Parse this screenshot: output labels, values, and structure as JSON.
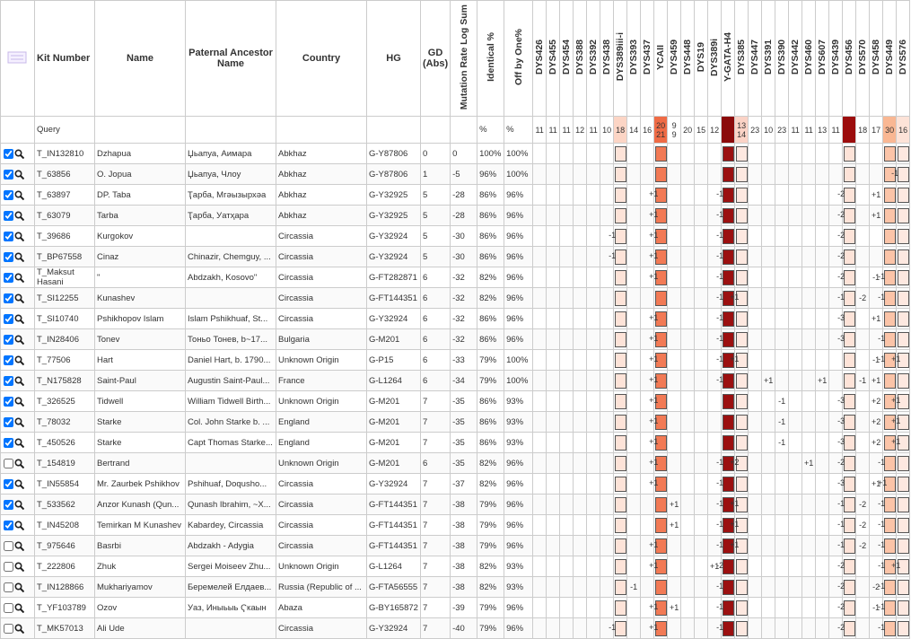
{
  "header": {
    "columns": [
      "Kit Number",
      "Name",
      "Paternal Ancestor Name",
      "Country",
      "HG",
      "GD (Abs)",
      "Mutation Rate Log Sum",
      "Identical %",
      "Off by One%"
    ],
    "markers": [
      "DYS426",
      "DYS455",
      "DYS454",
      "DYS388",
      "DYS392",
      "DYS438",
      "DYS389iii-i",
      "DYS393",
      "DYS437",
      "YCAII",
      "DYS459",
      "DYS448",
      "DYS19",
      "DYS389i",
      "Y-GATA-H4",
      "DYS385",
      "DYS447",
      "DYS391",
      "DYS390",
      "DYS442",
      "DYS460",
      "DYS607",
      "DYS439",
      "DYS456",
      "DYS570",
      "DYS458",
      "DYS449",
      "DYS576"
    ]
  },
  "query": {
    "label": "Query",
    "identical": "%",
    "off_by_one": "%",
    "values": [
      "11",
      "11",
      "11",
      "12",
      "11",
      "10",
      "18",
      "14",
      "16",
      [
        "20",
        "21"
      ],
      [
        "9",
        "9"
      ],
      "20",
      "15",
      "12",
      null,
      [
        "13",
        "14"
      ],
      "23",
      "10",
      "23",
      "11",
      "11",
      "13",
      "11",
      null,
      "18",
      "17",
      "30",
      "16"
    ]
  },
  "rows": [
    {
      "checked": true,
      "kit": "T_IN132810",
      "name": "Dzhapua",
      "ancestor": "Џьапуа, Аимара",
      "country": "Abkhaz",
      "hg": "G-Y87806",
      "gd": "0",
      "mut": "0",
      "ident": "100%",
      "off": "100%",
      "diffs": [
        null,
        null,
        null,
        null,
        null,
        null,
        null,
        null,
        null,
        null,
        null,
        null,
        null,
        null,
        null,
        null,
        null,
        null,
        null,
        null,
        null,
        null,
        null,
        null,
        null,
        null,
        null,
        null
      ]
    },
    {
      "checked": true,
      "kit": "T_63856",
      "name": "O. Jopua",
      "ancestor": "Џьапуа, Члоу",
      "country": "Abkhaz",
      "hg": "G-Y87806",
      "gd": "1",
      "mut": "-5",
      "ident": "96%",
      "off": "100%",
      "diffs": [
        null,
        null,
        null,
        null,
        null,
        null,
        null,
        null,
        null,
        null,
        null,
        null,
        null,
        null,
        null,
        null,
        null,
        null,
        null,
        null,
        null,
        null,
        null,
        null,
        null,
        null,
        null,
        "-1"
      ]
    },
    {
      "checked": true,
      "kit": "T_63897",
      "name": "DP. Taba",
      "ancestor": "Ҭарба, Мгәызырхәа",
      "country": "Abkhaz",
      "hg": "G-Y32925",
      "gd": "5",
      "mut": "-28",
      "ident": "86%",
      "off": "96%",
      "diffs": [
        null,
        null,
        null,
        null,
        null,
        null,
        null,
        null,
        null,
        "+1",
        null,
        null,
        null,
        null,
        "-1",
        null,
        null,
        null,
        null,
        null,
        null,
        null,
        null,
        "-2",
        null,
        "+1",
        null,
        null
      ]
    },
    {
      "checked": true,
      "kit": "T_63079",
      "name": "Tarba",
      "ancestor": "Ҭарба, Уатҳара",
      "country": "Abkhaz",
      "hg": "G-Y32925",
      "gd": "5",
      "mut": "-28",
      "ident": "86%",
      "off": "96%",
      "diffs": [
        null,
        null,
        null,
        null,
        null,
        null,
        null,
        null,
        null,
        "+1",
        null,
        null,
        null,
        null,
        "-1",
        null,
        null,
        null,
        null,
        null,
        null,
        null,
        null,
        "-2",
        null,
        "+1",
        null,
        null
      ]
    },
    {
      "checked": true,
      "kit": "T_39686",
      "name": "Kurgokov",
      "ancestor": "",
      "country": "Circassia",
      "hg": "G-Y32924",
      "gd": "5",
      "mut": "-30",
      "ident": "86%",
      "off": "96%",
      "diffs": [
        null,
        null,
        null,
        null,
        null,
        null,
        "-1",
        null,
        null,
        "+1",
        null,
        null,
        null,
        null,
        "-1",
        null,
        null,
        null,
        null,
        null,
        null,
        null,
        null,
        "-2",
        null,
        null,
        null,
        null
      ]
    },
    {
      "checked": true,
      "kit": "T_BP67558",
      "name": "Cinaz",
      "ancestor": "Chinazir, Chemguy, ...",
      "country": "Circassia",
      "hg": "G-Y32924",
      "gd": "5",
      "mut": "-30",
      "ident": "86%",
      "off": "96%",
      "diffs": [
        null,
        null,
        null,
        null,
        null,
        null,
        "-1",
        null,
        null,
        "+1",
        null,
        null,
        null,
        null,
        "-1",
        null,
        null,
        null,
        null,
        null,
        null,
        null,
        null,
        "-2",
        null,
        null,
        null,
        null
      ]
    },
    {
      "checked": true,
      "kit": "T_Maksut Hasani",
      "name": "\"",
      "ancestor": "Abdzakh, Kosovo\"",
      "country": "Circassia",
      "hg": "G-FT282871",
      "gd": "6",
      "mut": "-32",
      "ident": "82%",
      "off": "96%",
      "diffs": [
        null,
        null,
        null,
        null,
        null,
        null,
        null,
        null,
        null,
        "+1",
        null,
        null,
        null,
        null,
        "-1",
        null,
        null,
        null,
        null,
        null,
        null,
        null,
        null,
        "-2",
        null,
        "-1",
        "-1",
        null
      ]
    },
    {
      "checked": true,
      "kit": "T_SI12255",
      "name": "Kunashev",
      "ancestor": "",
      "country": "Circassia",
      "hg": "G-FT144351",
      "gd": "6",
      "mut": "-32",
      "ident": "82%",
      "off": "96%",
      "diffs": [
        null,
        null,
        null,
        null,
        null,
        null,
        null,
        null,
        null,
        null,
        null,
        null,
        null,
        null,
        "-1",
        "+1",
        null,
        null,
        null,
        null,
        null,
        null,
        null,
        "-1",
        "-2",
        null,
        "-1",
        null
      ]
    },
    {
      "checked": true,
      "kit": "T_SI10740",
      "name": "Pshikhopov Islam",
      "ancestor": "Islam Pshikhuaf, St...",
      "country": "Circassia",
      "hg": "G-Y32924",
      "gd": "6",
      "mut": "-32",
      "ident": "86%",
      "off": "96%",
      "diffs": [
        null,
        null,
        null,
        null,
        null,
        null,
        null,
        null,
        null,
        "+1",
        null,
        null,
        null,
        null,
        "-1",
        null,
        null,
        null,
        null,
        null,
        null,
        null,
        null,
        "-3",
        null,
        "+1",
        null,
        null
      ]
    },
    {
      "checked": true,
      "kit": "T_IN28406",
      "name": "Tonev",
      "ancestor": "Тоньо Тонев, b~17...",
      "country": "Bulgaria",
      "hg": "G-M201",
      "gd": "6",
      "mut": "-32",
      "ident": "86%",
      "off": "96%",
      "diffs": [
        null,
        null,
        null,
        null,
        null,
        null,
        null,
        null,
        null,
        "+1",
        null,
        null,
        null,
        null,
        "-1",
        null,
        null,
        null,
        null,
        null,
        null,
        null,
        null,
        "-3",
        null,
        null,
        "-1",
        null
      ]
    },
    {
      "checked": true,
      "kit": "T_77506",
      "name": "Hart",
      "ancestor": "Daniel Hart, b. 1790...",
      "country": "Unknown Origin",
      "hg": "G-P15",
      "gd": "6",
      "mut": "-33",
      "ident": "79%",
      "off": "100%",
      "diffs": [
        null,
        null,
        null,
        null,
        null,
        null,
        null,
        null,
        null,
        "+1",
        null,
        null,
        null,
        null,
        "-1",
        "+1",
        null,
        null,
        null,
        null,
        null,
        null,
        null,
        null,
        null,
        "-1",
        "-1",
        "+1"
      ]
    },
    {
      "checked": true,
      "kit": "T_N175828",
      "name": "Saint-Paul",
      "ancestor": "Augustin Saint-Paul...",
      "country": "France",
      "hg": "G-L1264",
      "gd": "6",
      "mut": "-34",
      "ident": "79%",
      "off": "100%",
      "diffs": [
        null,
        null,
        null,
        null,
        null,
        null,
        null,
        null,
        null,
        "+1",
        null,
        null,
        null,
        null,
        "-1",
        null,
        null,
        "+1",
        null,
        null,
        null,
        "+1",
        null,
        null,
        "-1",
        "+1",
        null,
        null
      ]
    },
    {
      "checked": true,
      "kit": "T_326525",
      "name": "Tidwell",
      "ancestor": "William Tidwell Birth...",
      "country": "Unknown Origin",
      "hg": "G-M201",
      "gd": "7",
      "mut": "-35",
      "ident": "86%",
      "off": "93%",
      "diffs": [
        null,
        null,
        null,
        null,
        null,
        null,
        null,
        null,
        null,
        "+1",
        null,
        null,
        null,
        null,
        null,
        null,
        null,
        null,
        "-1",
        null,
        null,
        null,
        null,
        "-3",
        null,
        "+2",
        null,
        "+1"
      ]
    },
    {
      "checked": true,
      "kit": "T_78032",
      "name": "Starke",
      "ancestor": "Col. John Starke b. ...",
      "country": "England",
      "hg": "G-M201",
      "gd": "7",
      "mut": "-35",
      "ident": "86%",
      "off": "93%",
      "diffs": [
        null,
        null,
        null,
        null,
        null,
        null,
        null,
        null,
        null,
        "+1",
        null,
        null,
        null,
        null,
        null,
        null,
        null,
        null,
        "-1",
        null,
        null,
        null,
        null,
        "-3",
        null,
        "+2",
        null,
        "+1"
      ]
    },
    {
      "checked": true,
      "kit": "T_450526",
      "name": "Starke",
      "ancestor": "Capt Thomas Starke...",
      "country": "England",
      "hg": "G-M201",
      "gd": "7",
      "mut": "-35",
      "ident": "86%",
      "off": "93%",
      "diffs": [
        null,
        null,
        null,
        null,
        null,
        null,
        null,
        null,
        null,
        "+1",
        null,
        null,
        null,
        null,
        null,
        null,
        null,
        null,
        "-1",
        null,
        null,
        null,
        null,
        "-3",
        null,
        "+2",
        null,
        "+1"
      ]
    },
    {
      "checked": false,
      "kit": "T_154819",
      "name": "Bertrand",
      "ancestor": "",
      "country": "Unknown Origin",
      "hg": "G-M201",
      "gd": "6",
      "mut": "-35",
      "ident": "82%",
      "off": "96%",
      "diffs": [
        null,
        null,
        null,
        null,
        null,
        null,
        null,
        null,
        null,
        "+1",
        null,
        null,
        null,
        null,
        "-1",
        "+2",
        null,
        null,
        null,
        null,
        "+1",
        null,
        null,
        "-2",
        null,
        null,
        "-1",
        null
      ]
    },
    {
      "checked": true,
      "kit": "T_IN55854",
      "name": "Mr. Zaurbek Pshikhov",
      "ancestor": "Pshihuaf, Doqusho...",
      "country": "Circassia",
      "hg": "G-Y32924",
      "gd": "7",
      "mut": "-37",
      "ident": "82%",
      "off": "96%",
      "diffs": [
        null,
        null,
        null,
        null,
        null,
        null,
        null,
        null,
        null,
        "+1",
        null,
        null,
        null,
        null,
        "-1",
        null,
        null,
        null,
        null,
        null,
        null,
        null,
        null,
        "-3",
        null,
        "+1",
        "+1",
        null
      ]
    },
    {
      "checked": true,
      "kit": "T_533562",
      "name": "Anzor Kunash (Qun...",
      "ancestor": "Qunash Ibrahim, ~X...",
      "country": "Circassia",
      "hg": "G-FT144351",
      "gd": "7",
      "mut": "-38",
      "ident": "79%",
      "off": "96%",
      "diffs": [
        null,
        null,
        null,
        null,
        null,
        null,
        null,
        null,
        null,
        null,
        "+1",
        null,
        null,
        null,
        "-1",
        "+1",
        null,
        null,
        null,
        null,
        null,
        null,
        null,
        "-1",
        "-2",
        null,
        "-1",
        null
      ]
    },
    {
      "checked": true,
      "kit": "T_IN45208",
      "name": "Temirkan M Kunashev",
      "ancestor": "Kabardey, Circassia",
      "country": "Circassia",
      "hg": "G-FT144351",
      "gd": "7",
      "mut": "-38",
      "ident": "79%",
      "off": "96%",
      "diffs": [
        null,
        null,
        null,
        null,
        null,
        null,
        null,
        null,
        null,
        null,
        "+1",
        null,
        null,
        null,
        "-1",
        "+1",
        null,
        null,
        null,
        null,
        null,
        null,
        null,
        "-1",
        "-2",
        null,
        "-1",
        null
      ]
    },
    {
      "checked": false,
      "kit": "T_975646",
      "name": "Basrbi",
      "ancestor": "Abdzakh - Adygia",
      "country": "Circassia",
      "hg": "G-FT144351",
      "gd": "7",
      "mut": "-38",
      "ident": "79%",
      "off": "96%",
      "diffs": [
        null,
        null,
        null,
        null,
        null,
        null,
        null,
        null,
        null,
        "+1",
        null,
        null,
        null,
        null,
        "-1",
        "+1",
        null,
        null,
        null,
        null,
        null,
        null,
        null,
        "-1",
        "-2",
        null,
        "-1",
        null
      ]
    },
    {
      "checked": false,
      "kit": "T_222806",
      "name": "Zhuk",
      "ancestor": "Sergei Moiseev Zhu...",
      "country": "Unknown Origin",
      "hg": "G-L1264",
      "gd": "7",
      "mut": "-38",
      "ident": "82%",
      "off": "93%",
      "diffs": [
        null,
        null,
        null,
        null,
        null,
        null,
        null,
        null,
        null,
        "+1",
        null,
        null,
        null,
        "+1",
        "-2",
        null,
        null,
        null,
        null,
        null,
        null,
        null,
        null,
        "-2",
        null,
        null,
        "-1",
        "+1"
      ]
    },
    {
      "checked": false,
      "kit": "T_IN128866",
      "name": "Mukhariyamov",
      "ancestor": "Беремелей Елдаев...",
      "country": "Russia (Republic of ...",
      "hg": "G-FTA56555",
      "gd": "7",
      "mut": "-38",
      "ident": "82%",
      "off": "93%",
      "diffs": [
        null,
        null,
        null,
        null,
        null,
        null,
        null,
        "-1",
        null,
        null,
        null,
        null,
        null,
        null,
        "-1",
        null,
        null,
        null,
        null,
        null,
        null,
        null,
        null,
        "-2",
        null,
        "-2",
        "-1",
        null
      ]
    },
    {
      "checked": false,
      "kit": "T_YF103789",
      "name": "Ozov",
      "ancestor": "Уаз, Иныьыь Ҁкаын",
      "country": "Abaza",
      "hg": "G-BY165872",
      "gd": "7",
      "mut": "-39",
      "ident": "79%",
      "off": "96%",
      "diffs": [
        null,
        null,
        null,
        null,
        null,
        null,
        null,
        null,
        null,
        "+1",
        "+1",
        null,
        null,
        null,
        "-1",
        null,
        null,
        null,
        null,
        null,
        null,
        null,
        null,
        "-2",
        null,
        "-1",
        "-1",
        null
      ]
    },
    {
      "checked": false,
      "kit": "T_MK57013",
      "name": "Ali Ude",
      "ancestor": "",
      "country": "Circassia",
      "hg": "G-Y32924",
      "gd": "7",
      "mut": "-40",
      "ident": "79%",
      "off": "96%",
      "diffs": [
        null,
        null,
        null,
        null,
        null,
        null,
        "-1",
        null,
        null,
        "+1",
        null,
        null,
        null,
        null,
        "-1",
        null,
        null,
        null,
        null,
        null,
        null,
        null,
        null,
        "-2",
        null,
        null,
        "-1",
        null
      ]
    }
  ]
}
